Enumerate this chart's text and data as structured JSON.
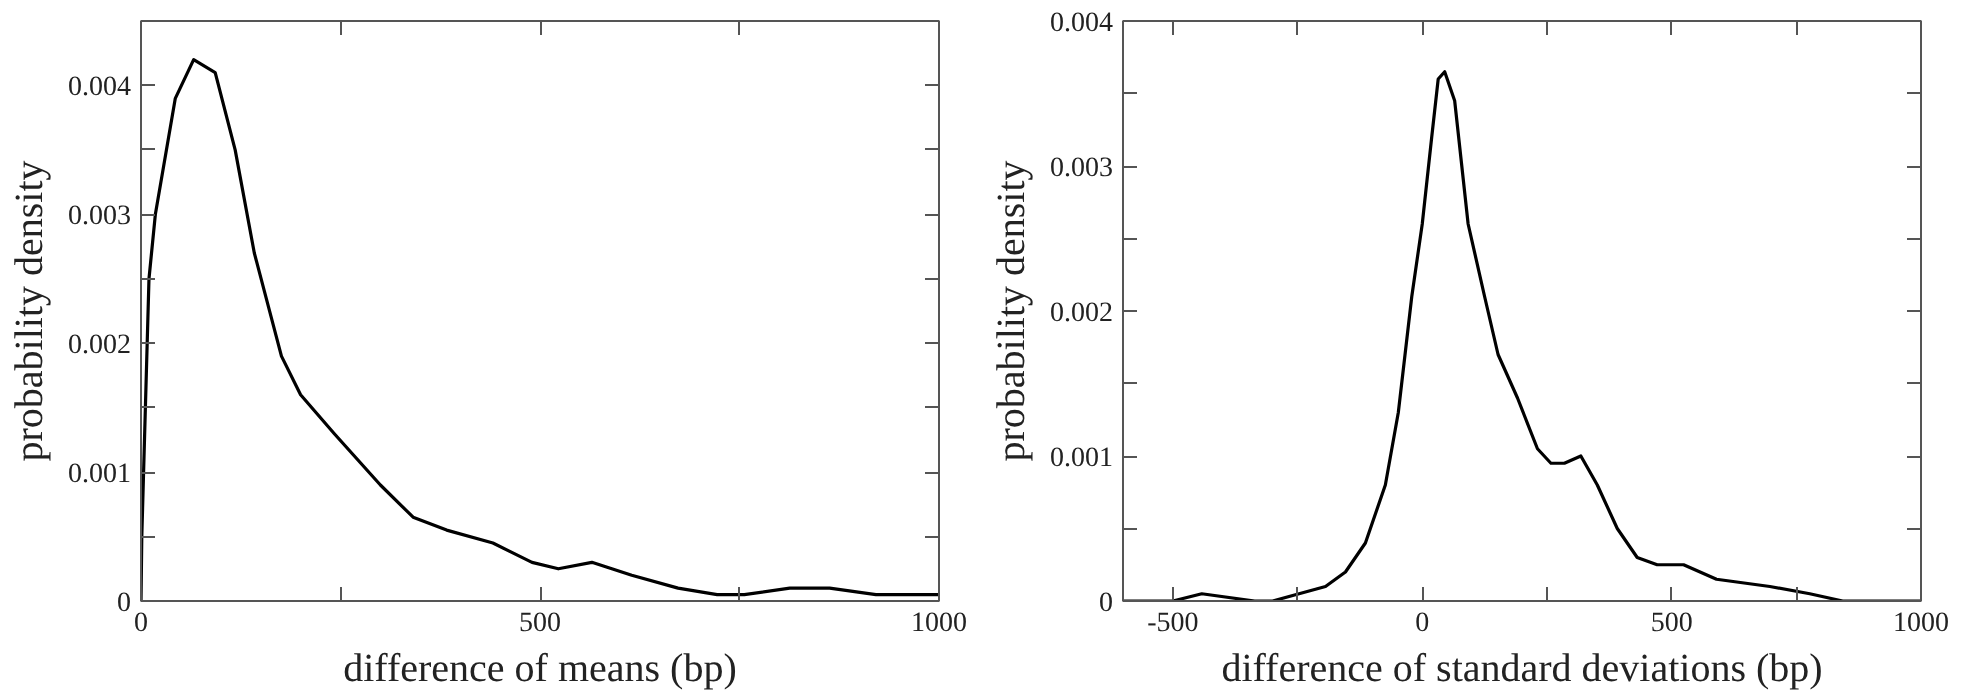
{
  "chart_data": [
    {
      "type": "line",
      "xlabel": "difference of means (bp)",
      "ylabel": "probability density",
      "x": [
        0,
        1,
        10,
        18,
        43,
        66,
        93,
        118,
        142,
        176,
        200,
        242,
        300,
        341,
        383,
        441,
        490,
        523,
        565,
        615,
        673,
        722,
        756,
        813,
        863,
        921,
        1000
      ],
      "series": [
        {
          "color": "#000000",
          "values": [
            0,
            0.0005,
            0.0025,
            0.003,
            0.0039,
            0.0042,
            0.0041,
            0.0035,
            0.0027,
            0.0019,
            0.0016,
            0.0013,
            0.0009,
            0.00065,
            0.00055,
            0.00045,
            0.0003,
            0.00025,
            0.0003,
            0.0002,
            0.0001,
            5e-05,
            5e-05,
            0.0001,
            0.0001,
            5e-05,
            5e-05
          ]
        }
      ],
      "xlim": [
        0,
        1000
      ],
      "ylim": [
        0,
        0.0045
      ],
      "xticks": [
        0,
        {
          "value": 250,
          "label": null
        },
        500,
        {
          "value": 750,
          "label": null
        },
        1000
      ],
      "yticks": [
        0,
        {
          "value": 0.0005,
          "label": null
        },
        0.001,
        {
          "value": 0.0015,
          "label": null
        },
        0.002,
        {
          "value": 0.0025,
          "label": null
        },
        0.003,
        {
          "value": 0.0035,
          "label": null
        },
        0.004
      ],
      "grid": false,
      "line_style": "solid",
      "marker": "none"
    },
    {
      "type": "line",
      "xlabel": "difference of standard deviations (bp)",
      "ylabel": "probability density",
      "x": [
        -600,
        -500,
        -442,
        -336,
        -300,
        -247,
        -194,
        -154,
        -114,
        -74,
        -48,
        -21,
        0,
        19,
        32,
        45,
        65,
        92,
        125,
        152,
        191,
        231,
        258,
        285,
        318,
        351,
        391,
        431,
        471,
        524,
        590,
        697,
        777,
        843,
        923,
        1000
      ],
      "series": [
        {
          "color": "#000000",
          "values": [
            0,
            0,
            5e-05,
            0,
            0,
            5e-05,
            0.0001,
            0.0002,
            0.0004,
            0.0008,
            0.0013,
            0.0021,
            0.0026,
            0.0032,
            0.0036,
            0.00365,
            0.00345,
            0.0026,
            0.0021,
            0.0017,
            0.0014,
            0.00105,
            0.00095,
            0.00095,
            0.001,
            0.0008,
            0.0005,
            0.0003,
            0.00025,
            0.00025,
            0.00015,
            0.0001,
            5e-05,
            0,
            0,
            0
          ]
        }
      ],
      "xlim": [
        -600,
        1000
      ],
      "ylim": [
        0,
        0.004
      ],
      "xticks": [
        -500,
        {
          "value": -250,
          "label": null
        },
        0,
        {
          "value": 250,
          "label": null
        },
        500,
        {
          "value": 750,
          "label": null
        },
        1000
      ],
      "yticks": [
        0,
        {
          "value": 0.0005,
          "label": null
        },
        0.001,
        {
          "value": 0.0015,
          "label": null
        },
        0.002,
        {
          "value": 0.0025,
          "label": null
        },
        0.003,
        {
          "value": 0.0035,
          "label": null
        },
        0.004
      ],
      "grid": false,
      "line_style": "solid",
      "marker": "none"
    }
  ]
}
